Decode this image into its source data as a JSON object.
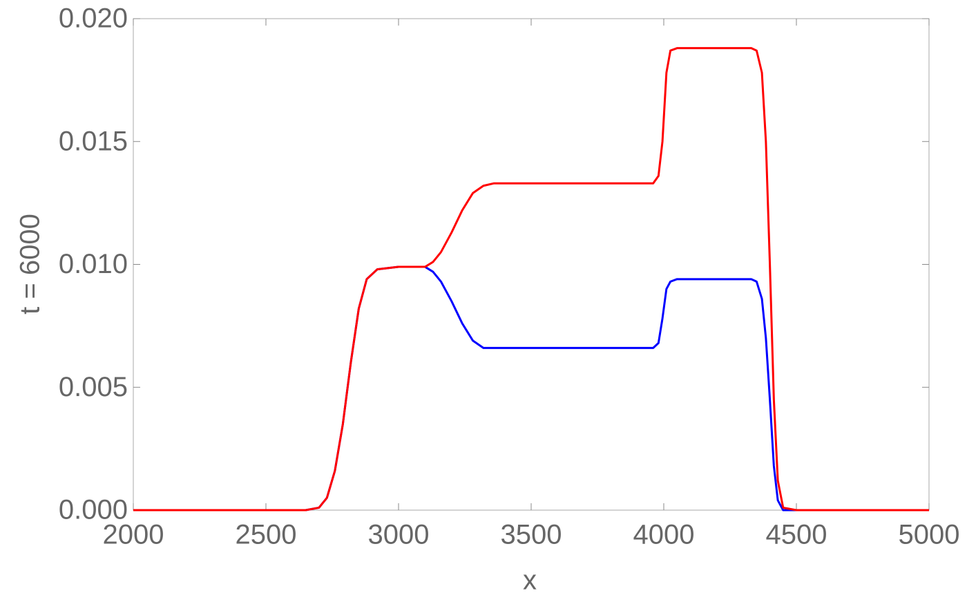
{
  "chart_data": {
    "type": "line",
    "xlabel": "x",
    "ylabel": "t = 6000",
    "x": [
      2000,
      2500,
      2650,
      2700,
      2730,
      2760,
      2790,
      2820,
      2850,
      2880,
      2920,
      3000,
      3100,
      3130,
      3160,
      3200,
      3240,
      3280,
      3320,
      3360,
      3500,
      3700,
      3900,
      3960,
      3980,
      3995,
      4010,
      4025,
      4050,
      4200,
      4330,
      4350,
      4370,
      4385,
      4400,
      4415,
      4430,
      4450,
      4500,
      5000
    ],
    "series": [
      {
        "color": "#0000ff",
        "values": [
          0,
          0,
          0,
          0.0001,
          0.0005,
          0.0016,
          0.0035,
          0.006,
          0.0082,
          0.0094,
          0.0098,
          0.0099,
          0.0099,
          0.0097,
          0.0093,
          0.0085,
          0.0076,
          0.0069,
          0.0066,
          0.0066,
          0.0066,
          0.0066,
          0.0066,
          0.0066,
          0.0068,
          0.0078,
          0.009,
          0.0093,
          0.0094,
          0.0094,
          0.0094,
          0.0093,
          0.0086,
          0.007,
          0.0045,
          0.0018,
          0.0004,
          0,
          0,
          0
        ]
      },
      {
        "color": "#ff0000",
        "values": [
          0,
          0,
          0,
          0.0001,
          0.0005,
          0.0016,
          0.0035,
          0.006,
          0.0082,
          0.0094,
          0.0098,
          0.0099,
          0.0099,
          0.0101,
          0.0105,
          0.0113,
          0.0122,
          0.0129,
          0.0132,
          0.0133,
          0.0133,
          0.0133,
          0.0133,
          0.0133,
          0.0136,
          0.015,
          0.0178,
          0.0187,
          0.0188,
          0.0188,
          0.0188,
          0.0187,
          0.0178,
          0.015,
          0.01,
          0.0045,
          0.0012,
          0.0001,
          0,
          0
        ]
      }
    ],
    "xlim": [
      2000,
      5000
    ],
    "xticks": [
      2000,
      2500,
      3000,
      3500,
      4000,
      4500,
      5000
    ],
    "ylim": [
      0,
      0.02
    ],
    "yticks": [
      {
        "value": 0,
        "label": "0.000"
      },
      {
        "value": 0.005,
        "label": "0.005"
      },
      {
        "value": 0.01,
        "label": "0.010"
      },
      {
        "value": 0.015,
        "label": "0.015"
      },
      {
        "value": 0.02,
        "label": "0.020"
      }
    ]
  }
}
